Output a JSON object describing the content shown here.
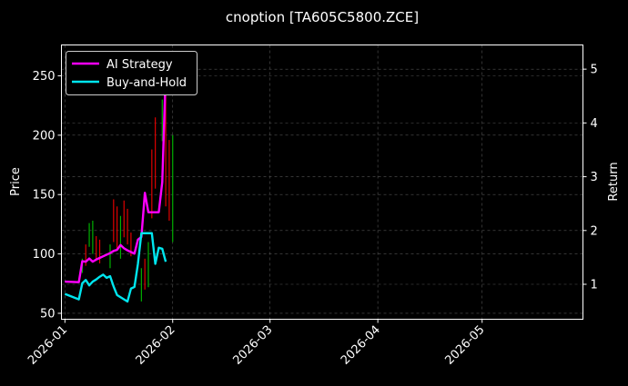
{
  "chart_data": {
    "type": "line",
    "title": "cnoption [TA605C5800.ZCE]",
    "ylabel_left": "Price",
    "ylabel_right": "Return",
    "xlim": [
      "2025-12-31",
      "2026-05-30"
    ],
    "ylim_left": [
      45,
      276
    ],
    "ylim_right": [
      0.35,
      5.45
    ],
    "grid": true,
    "legend": "top-left",
    "x_ticks": [
      "2026-01",
      "2026-02",
      "2026-03",
      "2026-04",
      "2026-05"
    ],
    "y_ticks_left": [
      50,
      100,
      150,
      200,
      250
    ],
    "y_ticks_right": [
      1,
      2,
      3,
      4,
      5
    ],
    "colors": {
      "up": "#00b000",
      "down": "#e00000",
      "ai": "#ff00ff",
      "bh": "#00e5ee",
      "grid": "#555555"
    },
    "candles": [
      {
        "date": "2026-01-06",
        "high": 96,
        "low": 84,
        "dir": "up"
      },
      {
        "date": "2026-01-07",
        "high": 108,
        "low": 90,
        "dir": "down"
      },
      {
        "date": "2026-01-08",
        "high": 126,
        "low": 106,
        "dir": "up"
      },
      {
        "date": "2026-01-09",
        "high": 128,
        "low": 100,
        "dir": "up"
      },
      {
        "date": "2026-01-10",
        "high": 115,
        "low": 94,
        "dir": "down"
      },
      {
        "date": "2026-01-11",
        "high": 112,
        "low": 92,
        "dir": "down"
      },
      {
        "date": "2026-01-14",
        "high": 108,
        "low": 88,
        "dir": "up"
      },
      {
        "date": "2026-01-15",
        "high": 146,
        "low": 110,
        "dir": "down"
      },
      {
        "date": "2026-01-16",
        "high": 140,
        "low": 104,
        "dir": "down"
      },
      {
        "date": "2026-01-17",
        "high": 132,
        "low": 96,
        "dir": "up"
      },
      {
        "date": "2026-01-18",
        "high": 145,
        "low": 114,
        "dir": "down"
      },
      {
        "date": "2026-01-19",
        "high": 138,
        "low": 108,
        "dir": "down"
      },
      {
        "date": "2026-01-20",
        "high": 118,
        "low": 98,
        "dir": "down"
      },
      {
        "date": "2026-01-22",
        "high": 96,
        "low": 88,
        "dir": "down"
      },
      {
        "date": "2026-01-23",
        "high": 88,
        "low": 60,
        "dir": "up"
      },
      {
        "date": "2026-01-24",
        "high": 96,
        "low": 70,
        "dir": "down"
      },
      {
        "date": "2026-01-25",
        "high": 110,
        "low": 72,
        "dir": "up"
      },
      {
        "date": "2026-01-26",
        "high": 188,
        "low": 130,
        "dir": "down"
      },
      {
        "date": "2026-01-27",
        "high": 215,
        "low": 155,
        "dir": "down"
      },
      {
        "date": "2026-01-29",
        "high": 230,
        "low": 195,
        "dir": "up"
      },
      {
        "date": "2026-01-30",
        "high": 258,
        "low": 140,
        "dir": "down"
      },
      {
        "date": "2026-01-31",
        "high": 196,
        "low": 128,
        "dir": "down"
      },
      {
        "date": "2026-02-01",
        "high": 200,
        "low": 110,
        "dir": "up"
      }
    ],
    "series": [
      {
        "name": "AI Strategy",
        "points": [
          [
            "2026-01-01",
            1.05
          ],
          [
            "2026-01-05",
            1.04
          ],
          [
            "2026-01-06",
            1.43
          ],
          [
            "2026-01-07",
            1.42
          ],
          [
            "2026-01-08",
            1.48
          ],
          [
            "2026-01-09",
            1.42
          ],
          [
            "2026-01-10",
            1.46
          ],
          [
            "2026-01-11",
            1.49
          ],
          [
            "2026-01-12",
            1.52
          ],
          [
            "2026-01-14",
            1.58
          ],
          [
            "2026-01-15",
            1.62
          ],
          [
            "2026-01-16",
            1.64
          ],
          [
            "2026-01-17",
            1.73
          ],
          [
            "2026-01-18",
            1.67
          ],
          [
            "2026-01-19",
            1.63
          ],
          [
            "2026-01-20",
            1.6
          ],
          [
            "2026-01-21",
            1.57
          ],
          [
            "2026-01-22",
            1.83
          ],
          [
            "2026-01-23",
            1.88
          ],
          [
            "2026-01-24",
            2.7
          ],
          [
            "2026-01-25",
            2.34
          ],
          [
            "2026-01-26",
            2.34
          ],
          [
            "2026-01-27",
            2.34
          ],
          [
            "2026-01-28",
            2.34
          ],
          [
            "2026-01-29",
            2.9
          ],
          [
            "2026-01-30",
            4.95
          ]
        ]
      },
      {
        "name": "Buy-and-Hold",
        "points": [
          [
            "2026-01-01",
            0.82
          ],
          [
            "2026-01-05",
            0.72
          ],
          [
            "2026-01-06",
            1.02
          ],
          [
            "2026-01-07",
            1.08
          ],
          [
            "2026-01-08",
            0.98
          ],
          [
            "2026-01-09",
            1.05
          ],
          [
            "2026-01-10",
            1.09
          ],
          [
            "2026-01-11",
            1.14
          ],
          [
            "2026-01-12",
            1.18
          ],
          [
            "2026-01-13",
            1.12
          ],
          [
            "2026-01-14",
            1.15
          ],
          [
            "2026-01-15",
            0.96
          ],
          [
            "2026-01-16",
            0.8
          ],
          [
            "2026-01-17",
            0.76
          ],
          [
            "2026-01-18",
            0.72
          ],
          [
            "2026-01-19",
            0.68
          ],
          [
            "2026-01-20",
            0.92
          ],
          [
            "2026-01-21",
            0.95
          ],
          [
            "2026-01-22",
            1.38
          ],
          [
            "2026-01-23",
            1.95
          ],
          [
            "2026-01-24",
            1.95
          ],
          [
            "2026-01-25",
            1.95
          ],
          [
            "2026-01-26",
            1.95
          ],
          [
            "2026-01-27",
            1.38
          ],
          [
            "2026-01-28",
            1.68
          ],
          [
            "2026-01-29",
            1.66
          ],
          [
            "2026-01-30",
            1.42
          ]
        ]
      }
    ]
  }
}
